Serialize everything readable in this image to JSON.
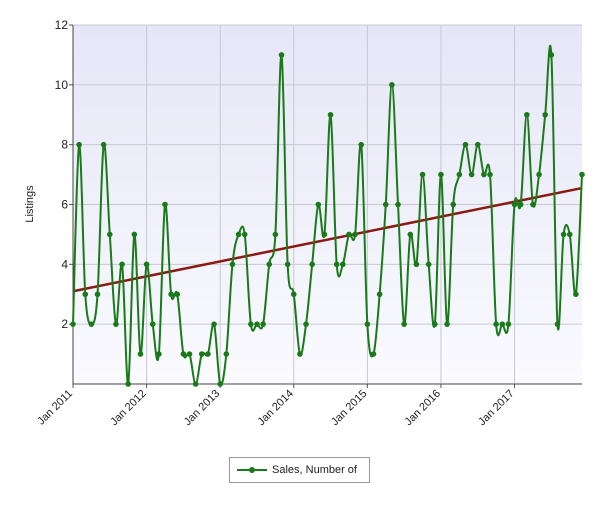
{
  "chart_data": {
    "type": "line",
    "ylabel": "Listings",
    "xlabel": "",
    "ylim": [
      0,
      12
    ],
    "yticks": [
      2,
      4,
      6,
      8,
      10,
      12
    ],
    "ytick_labels": [
      "2",
      "4",
      "6",
      "8",
      "10",
      "12"
    ],
    "xlim": [
      "2011-01",
      "2017-12"
    ],
    "xtick_labels": [
      "Jan 2011",
      "Jan 2012",
      "Jan 2013",
      "Jan 2014",
      "Jan 2015",
      "Jan 2016",
      "Jan 2017"
    ],
    "grid": true,
    "legend_position": "bottom",
    "series": [
      {
        "name": "Sales, Number of",
        "color": "#1a7a1a",
        "x": [
          "2011-01",
          "2011-02",
          "2011-03",
          "2011-04",
          "2011-05",
          "2011-06",
          "2011-07",
          "2011-08",
          "2011-09",
          "2011-10",
          "2011-11",
          "2011-12",
          "2012-01",
          "2012-02",
          "2012-03",
          "2012-04",
          "2012-05",
          "2012-06",
          "2012-07",
          "2012-08",
          "2012-09",
          "2012-10",
          "2012-11",
          "2012-12",
          "2013-01",
          "2013-02",
          "2013-03",
          "2013-04",
          "2013-05",
          "2013-06",
          "2013-07",
          "2013-08",
          "2013-09",
          "2013-10",
          "2013-11",
          "2013-12",
          "2014-01",
          "2014-02",
          "2014-03",
          "2014-04",
          "2014-05",
          "2014-06",
          "2014-07",
          "2014-08",
          "2014-09",
          "2014-10",
          "2014-11",
          "2014-12",
          "2015-01",
          "2015-02",
          "2015-03",
          "2015-04",
          "2015-05",
          "2015-06",
          "2015-07",
          "2015-08",
          "2015-09",
          "2015-10",
          "2015-11",
          "2015-12",
          "2016-01",
          "2016-02",
          "2016-03",
          "2016-04",
          "2016-05",
          "2016-06",
          "2016-07",
          "2016-08",
          "2016-09",
          "2016-10",
          "2016-11",
          "2016-12",
          "2017-01",
          "2017-02",
          "2017-03",
          "2017-04",
          "2017-05",
          "2017-06",
          "2017-07",
          "2017-08",
          "2017-09",
          "2017-10",
          "2017-11",
          "2017-12"
        ],
        "values": [
          2,
          8,
          3,
          2,
          3,
          8,
          5,
          2,
          4,
          0,
          5,
          1,
          4,
          2,
          1,
          6,
          3,
          3,
          1,
          1,
          0,
          1,
          1,
          2,
          0,
          1,
          4,
          5,
          5,
          2,
          2,
          2,
          4,
          5,
          11,
          4,
          3,
          1,
          2,
          4,
          6,
          5,
          9,
          4,
          4,
          5,
          5,
          8,
          2,
          1,
          3,
          6,
          10,
          6,
          2,
          5,
          4,
          7,
          4,
          2,
          7,
          2,
          6,
          7,
          8,
          7,
          8,
          7,
          7,
          2,
          2,
          2,
          6,
          6,
          9,
          6,
          7,
          9,
          11,
          2,
          5,
          5,
          3,
          7
        ]
      }
    ],
    "trendline": {
      "color": "#8b1a12",
      "start": 3.1,
      "end": 6.55
    }
  },
  "legend": {
    "label": "Sales, Number of"
  }
}
